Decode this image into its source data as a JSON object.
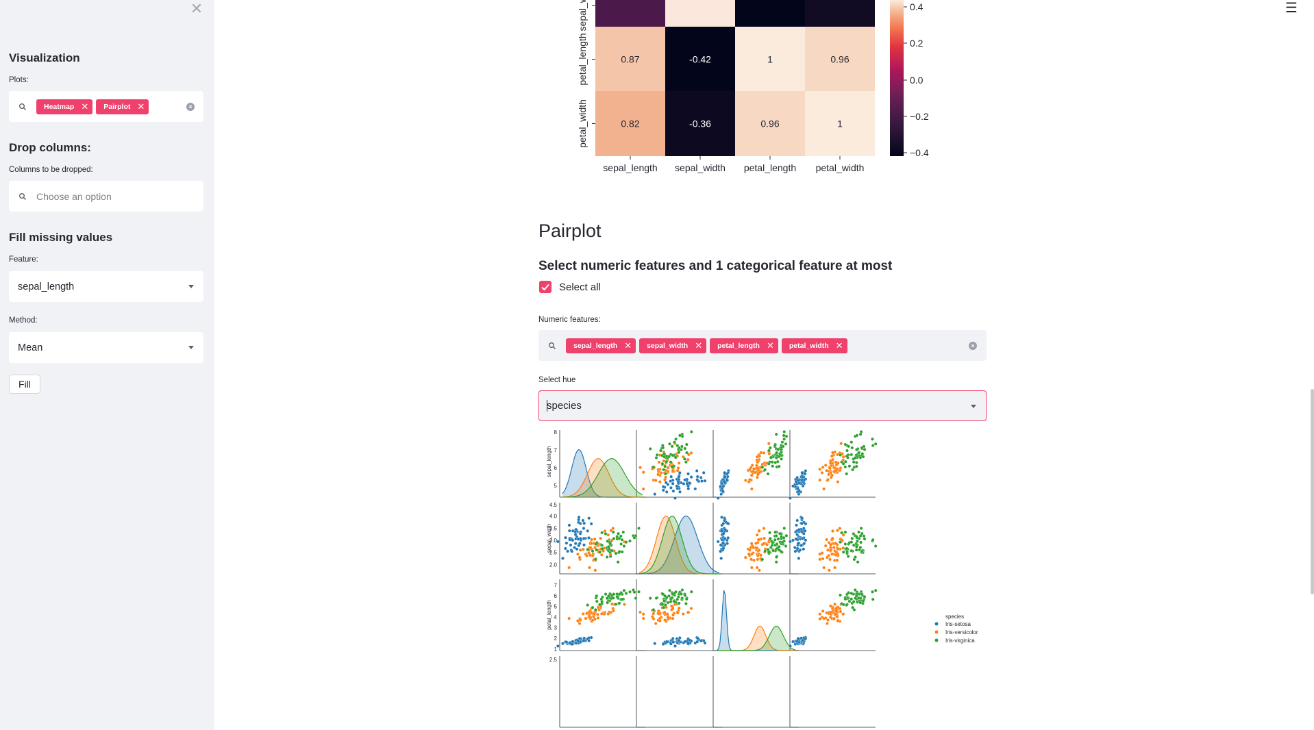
{
  "sidebar": {
    "close_icon": "close-icon",
    "visualization": {
      "title": "Visualization",
      "plots_label": "Plots:",
      "selected_plots": [
        "Heatmap",
        "Pairplot"
      ]
    },
    "drop_columns": {
      "title": "Drop columns:",
      "label": "Columns to be dropped:",
      "placeholder": "Choose an option"
    },
    "fill_missing": {
      "title": "Fill missing values",
      "feature_label": "Feature:",
      "feature_value": "sepal_length",
      "method_label": "Method:",
      "method_value": "Mean",
      "fill_button": "Fill"
    }
  },
  "header": {
    "menu_icon": "hamburger-menu-icon"
  },
  "heatmap": {
    "row_labels": [
      "sepal_width",
      "petal_length",
      "petal_width"
    ],
    "column_labels": [
      "sepal_length",
      "sepal_width",
      "petal_length",
      "petal_width"
    ],
    "visible_rows": [
      {
        "label": "sepal_width",
        "values": [
          null,
          null,
          null,
          null
        ],
        "colors": [
          "#4b1a4a",
          "#fbe7dc",
          "#03051a",
          "#110b23"
        ]
      },
      {
        "label": "petal_length",
        "values": [
          "0.87",
          "-0.42",
          "1",
          "0.96"
        ],
        "colors": [
          "#f4c5a9",
          "#03051a",
          "#faebdd",
          "#f7d8c3"
        ]
      },
      {
        "label": "petal_width",
        "values": [
          "0.82",
          "-0.36",
          "0.96",
          "1"
        ],
        "colors": [
          "#f2b28f",
          "#0c0921",
          "#f7d8c3",
          "#faebdd"
        ]
      }
    ],
    "colorbar_ticks": [
      "0.4",
      "0.2",
      "0.0",
      "−0.2",
      "−0.4"
    ],
    "colormap": "rocket"
  },
  "pairplot": {
    "title": "Pairplot",
    "subtitle": "Select numeric features and 1 categorical feature at most",
    "select_all_label": "Select all",
    "select_all_checked": true,
    "numeric_label": "Numeric features:",
    "numeric_features": [
      "sepal_length",
      "sepal_width",
      "petal_length",
      "petal_width"
    ],
    "hue_label": "Select hue",
    "hue_value": "species",
    "legend": {
      "title": "species",
      "entries": [
        "Iris-setosa",
        "Iris-versicolor",
        "Iris-virginica"
      ]
    },
    "colors": {
      "setosa": "#1f77b4",
      "versicolor": "#ff7f0e",
      "virginica": "#2ca02c",
      "accent": "#f0406c"
    },
    "row_axis_labels": [
      "sepal_length",
      "sepal_width",
      "petal_length"
    ],
    "row_ticks": [
      [
        "8",
        "7",
        "6",
        "5"
      ],
      [
        "4.5",
        "4.0",
        "3.5",
        "3.0",
        "2.5",
        "2.0"
      ],
      [
        "7",
        "6",
        "5",
        "4",
        "3",
        "2",
        "1"
      ],
      [
        "2.5"
      ]
    ]
  }
}
